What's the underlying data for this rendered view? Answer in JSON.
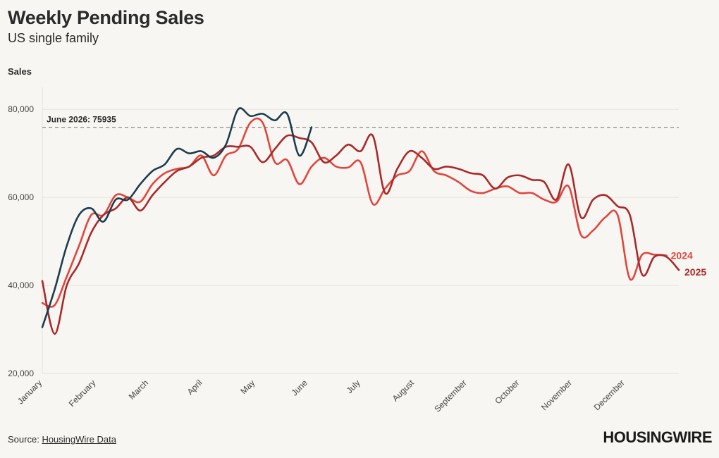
{
  "header": {
    "title": "Weekly Pending Sales",
    "subtitle": "US single family"
  },
  "footer": {
    "source_prefix": "Source:",
    "source_link": "HousingWire Data",
    "logo": "HOUSINGWIRE"
  },
  "chart_data": {
    "type": "line",
    "ylabel": "Sales",
    "ylim": [
      20000,
      85000
    ],
    "y_ticks": [
      20000,
      40000,
      60000,
      80000
    ],
    "y_tick_labels": [
      "20,000",
      "40,000",
      "60,000",
      "80,000"
    ],
    "x_unit": "week of year",
    "xlim": [
      1,
      53
    ],
    "x_ticks": [
      1,
      5.4,
      9.7,
      14.1,
      18.4,
      22.7,
      27,
      31.4,
      35.7,
      40,
      44.3,
      48.6
    ],
    "x_tick_labels": [
      "January",
      "February",
      "March",
      "April",
      "May",
      "June",
      "July",
      "August",
      "September",
      "October",
      "November",
      "December"
    ],
    "grid": "horizontal",
    "reference_line": {
      "y": 75935,
      "label": "June 2026: 75935",
      "style": "dashed"
    },
    "series": [
      {
        "name": "2024",
        "color": "#e0463e",
        "end_label": "2024",
        "x": [
          1,
          2,
          3,
          4,
          5,
          6,
          7,
          8,
          9,
          10,
          11,
          12,
          13,
          14,
          15,
          16,
          17,
          18,
          19,
          20,
          21,
          22,
          23,
          24,
          25,
          26,
          27,
          28,
          29,
          30,
          31,
          32,
          33,
          34,
          35,
          36,
          37,
          38,
          39,
          40,
          41,
          42,
          43,
          44,
          45,
          46,
          47,
          48,
          49,
          50,
          51,
          52,
          53
        ],
        "values": [
          36000,
          35500,
          42000,
          49000,
          56000,
          56000,
          60500,
          60000,
          59000,
          63000,
          65500,
          66500,
          67000,
          69500,
          65000,
          69500,
          71000,
          77000,
          77000,
          68000,
          68500,
          63000,
          67000,
          69000,
          67000,
          66800,
          68000,
          58500,
          62000,
          65000,
          66000,
          70500,
          66000,
          65000,
          63500,
          61500,
          61000,
          62000,
          62500,
          61000,
          61000,
          59500,
          59000,
          62500,
          51500,
          52500,
          55500,
          56000,
          41500,
          47000,
          47000,
          46800,
          null
        ]
      },
      {
        "name": "2025",
        "color": "#a82a2a",
        "end_label": "2025",
        "x": [
          1,
          2,
          3,
          4,
          5,
          6,
          7,
          8,
          9,
          10,
          11,
          12,
          13,
          14,
          15,
          16,
          17,
          18,
          19,
          20,
          21,
          22,
          23,
          24,
          25,
          26,
          27,
          28,
          29,
          30,
          31,
          32,
          33,
          34,
          35,
          36,
          37,
          38,
          39,
          40,
          41,
          42,
          43,
          44,
          45,
          46,
          47,
          48,
          49,
          50,
          51,
          52,
          53
        ],
        "values": [
          41000,
          29000,
          40000,
          45000,
          52000,
          56000,
          57500,
          60000,
          57000,
          60500,
          63500,
          66000,
          67000,
          69000,
          69500,
          71500,
          71500,
          71500,
          68000,
          71000,
          74000,
          73500,
          72500,
          68000,
          69500,
          72000,
          70500,
          74000,
          61000,
          66500,
          70500,
          69000,
          66500,
          67000,
          66500,
          65500,
          65000,
          62000,
          64500,
          65000,
          64000,
          63500,
          59500,
          67500,
          55500,
          59500,
          60500,
          58000,
          56000,
          42500,
          46500,
          46500,
          43500
        ]
      },
      {
        "name": "2026",
        "color": "#1c3d4f",
        "x": [
          1,
          2,
          3,
          4,
          5,
          6,
          7,
          8,
          9,
          10,
          11,
          12,
          13,
          14,
          15,
          16,
          17,
          18,
          19,
          20,
          21,
          22,
          23
        ],
        "values": [
          30500,
          39000,
          49000,
          56000,
          57500,
          54500,
          59500,
          59500,
          63000,
          66000,
          67500,
          71000,
          70000,
          70500,
          69000,
          72000,
          80000,
          78500,
          79000,
          77500,
          79000,
          69500,
          75935
        ]
      }
    ]
  }
}
